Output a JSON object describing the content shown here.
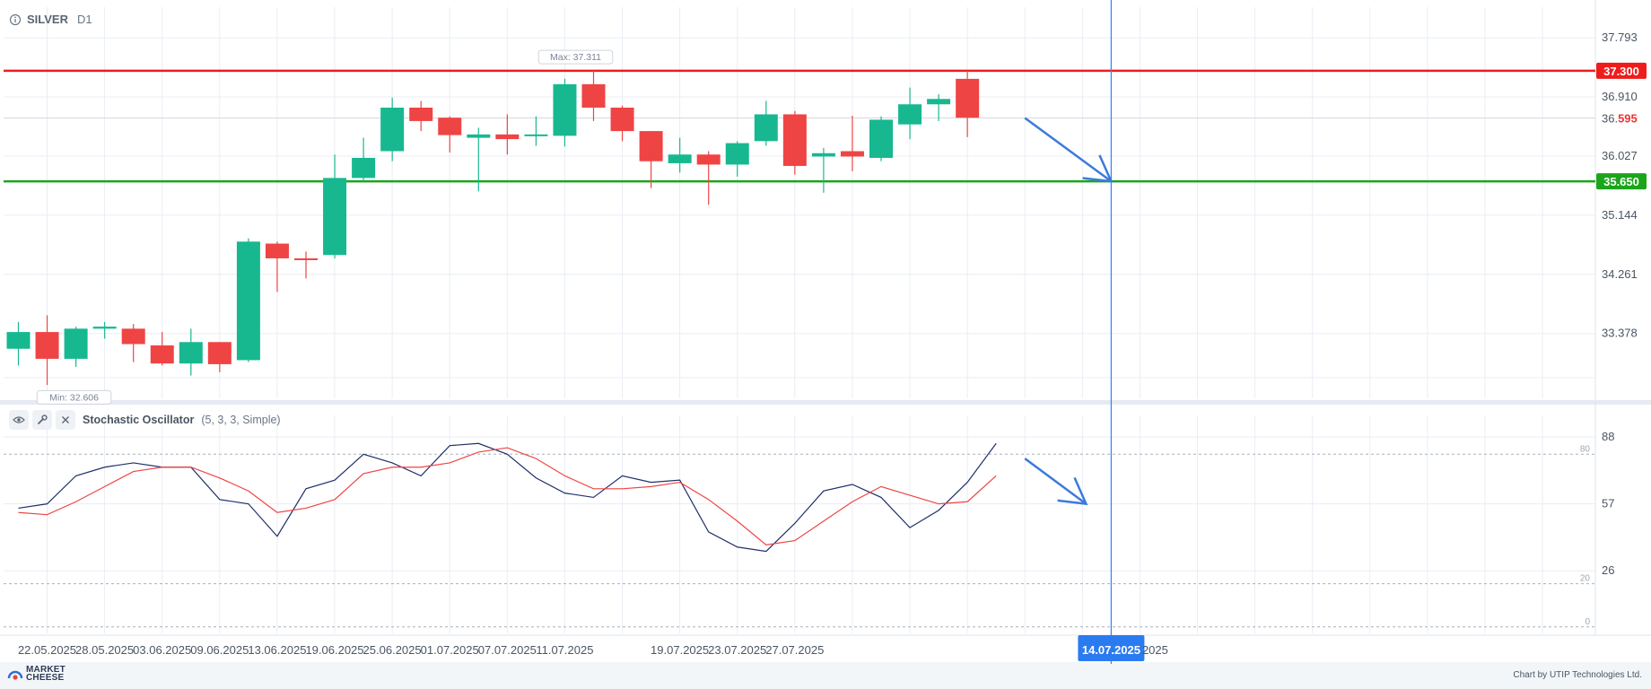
{
  "header": {
    "symbol": "SILVER",
    "timeframe": "D1",
    "info_icon": "info-icon"
  },
  "oscillator": {
    "name": "Stochastic Oscillator",
    "params": "(5, 3, 3, Simple)",
    "icons": [
      "eye-icon",
      "wrench-icon",
      "close-icon"
    ]
  },
  "footer": {
    "logo_line1": "MARKET",
    "logo_line2": "CHEESE",
    "credit": "Chart by UTIP Technologies Ltd."
  },
  "chart_data": [
    {
      "type": "candlestick",
      "price_axis_labels": [
        "37.793",
        "36.910",
        "36.027",
        "35.144",
        "34.261",
        "33.378"
      ],
      "price_axis_values": [
        37.793,
        36.91,
        36.027,
        35.144,
        34.261,
        33.378
      ],
      "ylim": [
        32.41,
        38.25
      ],
      "x_labels": [
        "22.05.2025",
        "28.05.2025",
        "03.06.2025",
        "09.06.2025",
        "13.06.2025",
        "19.06.2025",
        "25.06.2025",
        "01.07.2025",
        "07.07.2025",
        "11.07.2025",
        "14.07.2025",
        "19.07.2025",
        "23.07.2025",
        "27.07.2025"
      ],
      "x_label_highlight": "14.07.2025",
      "hidden_suffix": "2025",
      "grid": true,
      "candles": [
        {
          "date": "21.05.2025",
          "o": 33.15,
          "h": 33.55,
          "l": 32.9,
          "c": 33.4
        },
        {
          "date": "22.05.2025",
          "o": 33.4,
          "h": 33.65,
          "l": 32.61,
          "c": 33.0
        },
        {
          "date": "23.05.2025",
          "o": 33.0,
          "h": 33.48,
          "l": 32.88,
          "c": 33.45
        },
        {
          "date": "26.05.2025",
          "o": 33.45,
          "h": 33.55,
          "l": 33.3,
          "c": 33.48
        },
        {
          "date": "27.05.2025",
          "o": 33.45,
          "h": 33.52,
          "l": 32.95,
          "c": 33.22
        },
        {
          "date": "28.05.2025",
          "o": 33.2,
          "h": 33.4,
          "l": 32.9,
          "c": 32.93
        },
        {
          "date": "29.05.2025",
          "o": 32.93,
          "h": 33.45,
          "l": 32.75,
          "c": 33.25
        },
        {
          "date": "30.05.2025",
          "o": 33.25,
          "h": 33.25,
          "l": 32.8,
          "c": 32.92
        },
        {
          "date": "02.06.2025",
          "o": 32.98,
          "h": 34.8,
          "l": 32.95,
          "c": 34.75
        },
        {
          "date": "03.06.2025",
          "o": 34.72,
          "h": 34.75,
          "l": 34.0,
          "c": 34.5
        },
        {
          "date": "04.06.2025",
          "o": 34.5,
          "h": 34.6,
          "l": 34.2,
          "c": 34.48
        },
        {
          "date": "05.06.2025",
          "o": 34.55,
          "h": 36.05,
          "l": 34.5,
          "c": 35.7
        },
        {
          "date": "06.06.2025",
          "o": 35.7,
          "h": 36.3,
          "l": 35.65,
          "c": 36.0
        },
        {
          "date": "09.06.2025",
          "o": 36.1,
          "h": 36.9,
          "l": 35.95,
          "c": 36.75
        },
        {
          "date": "10.06.2025",
          "o": 36.75,
          "h": 36.85,
          "l": 36.4,
          "c": 36.55
        },
        {
          "date": "11.06.2025",
          "o": 36.6,
          "h": 36.62,
          "l": 36.08,
          "c": 36.34
        },
        {
          "date": "12.06.2025",
          "o": 36.3,
          "h": 36.45,
          "l": 35.5,
          "c": 36.35
        },
        {
          "date": "13.06.2025",
          "o": 36.35,
          "h": 36.65,
          "l": 36.05,
          "c": 36.28
        },
        {
          "date": "16.06.2025",
          "o": 36.34,
          "h": 36.62,
          "l": 36.18,
          "c": 36.35
        },
        {
          "date": "17.06.2025",
          "o": 36.33,
          "h": 37.18,
          "l": 36.17,
          "c": 37.1
        },
        {
          "date": "18.06.2025",
          "o": 37.1,
          "h": 37.31,
          "l": 36.55,
          "c": 36.75
        },
        {
          "date": "19.06.2025",
          "o": 36.75,
          "h": 36.78,
          "l": 36.25,
          "c": 36.4
        },
        {
          "date": "20.06.2025",
          "o": 36.4,
          "h": 36.4,
          "l": 35.55,
          "c": 35.95
        },
        {
          "date": "23.06.2025",
          "o": 35.92,
          "h": 36.3,
          "l": 35.78,
          "c": 36.05
        },
        {
          "date": "24.06.2025",
          "o": 36.05,
          "h": 36.1,
          "l": 35.3,
          "c": 35.9
        },
        {
          "date": "25.06.2025",
          "o": 35.9,
          "h": 36.25,
          "l": 35.72,
          "c": 36.22
        },
        {
          "date": "26.06.2025",
          "o": 36.25,
          "h": 36.85,
          "l": 36.18,
          "c": 36.65
        },
        {
          "date": "27.06.2025",
          "o": 36.65,
          "h": 36.7,
          "l": 35.75,
          "c": 35.88
        },
        {
          "date": "30.06.2025",
          "o": 36.02,
          "h": 36.15,
          "l": 35.48,
          "c": 36.07
        },
        {
          "date": "01.07.2025",
          "o": 36.1,
          "h": 36.63,
          "l": 35.8,
          "c": 36.02
        },
        {
          "date": "02.07.2025",
          "o": 36.0,
          "h": 36.62,
          "l": 35.95,
          "c": 36.57
        },
        {
          "date": "03.07.2025",
          "o": 36.5,
          "h": 37.05,
          "l": 36.28,
          "c": 36.8
        },
        {
          "date": "04.07.2025",
          "o": 36.8,
          "h": 36.95,
          "l": 36.55,
          "c": 36.88
        },
        {
          "date": "07.07.2025",
          "o": 37.18,
          "h": 37.3,
          "l": 36.31,
          "c": 36.6
        }
      ],
      "max_label": "Max: 37.311",
      "min_label": "Min: 32.606",
      "max_value": 37.311,
      "min_value": 32.606,
      "resistance": {
        "value": 37.3,
        "label": "37.300",
        "color": "#ef1c1c"
      },
      "support": {
        "value": 35.65,
        "label": "35.650",
        "color": "#1aa51a"
      },
      "current_price": {
        "value": 36.595,
        "label_main": "36.",
        "label_accent": "595",
        "color": "#ef3434"
      },
      "forecast_arrow": {
        "from_date": "09.07.2025",
        "from_value": 36.595,
        "to_date": "14.07.2025",
        "to_value": 35.65,
        "color": "#3b7bdb"
      },
      "colors": {
        "up": "#17b890",
        "down": "#ef4444",
        "vertical_line": "#3a86ff"
      }
    },
    {
      "type": "line",
      "title": "Stochastic Oscillator (5, 3, 3, Simple)",
      "y_axis_labels": [
        "88",
        "57",
        "26"
      ],
      "y_axis_values": [
        88,
        57,
        26
      ],
      "ylim": [
        -3,
        98
      ],
      "levels": [
        {
          "value": 80,
          "label": "80"
        },
        {
          "value": 20,
          "label": "20"
        },
        {
          "value": 0,
          "label": "0"
        }
      ],
      "series": [
        {
          "color": "#1f2f6b",
          "values": [
            55,
            57,
            70,
            74,
            76,
            74,
            74,
            59,
            57,
            42,
            64,
            68,
            80,
            76,
            70,
            84,
            85,
            80,
            69,
            62,
            60,
            70,
            67,
            68,
            44,
            37,
            35,
            48,
            63,
            66,
            60,
            46,
            54,
            67,
            85
          ]
        },
        {
          "color": "#ef4444",
          "values": [
            53,
            52,
            58,
            65,
            72,
            74,
            74,
            69,
            63,
            53,
            55,
            59,
            71,
            74,
            74,
            76,
            81,
            83,
            78,
            70,
            64,
            64,
            65,
            67,
            59,
            49,
            38,
            40,
            49,
            58,
            65,
            61,
            57,
            58,
            70
          ]
        }
      ],
      "forecast_arrow": {
        "from_date": "09.07.2025",
        "from_value": 78,
        "to_date": "14.07.2025",
        "to_value": 57,
        "color": "#3b7bdb"
      }
    }
  ]
}
